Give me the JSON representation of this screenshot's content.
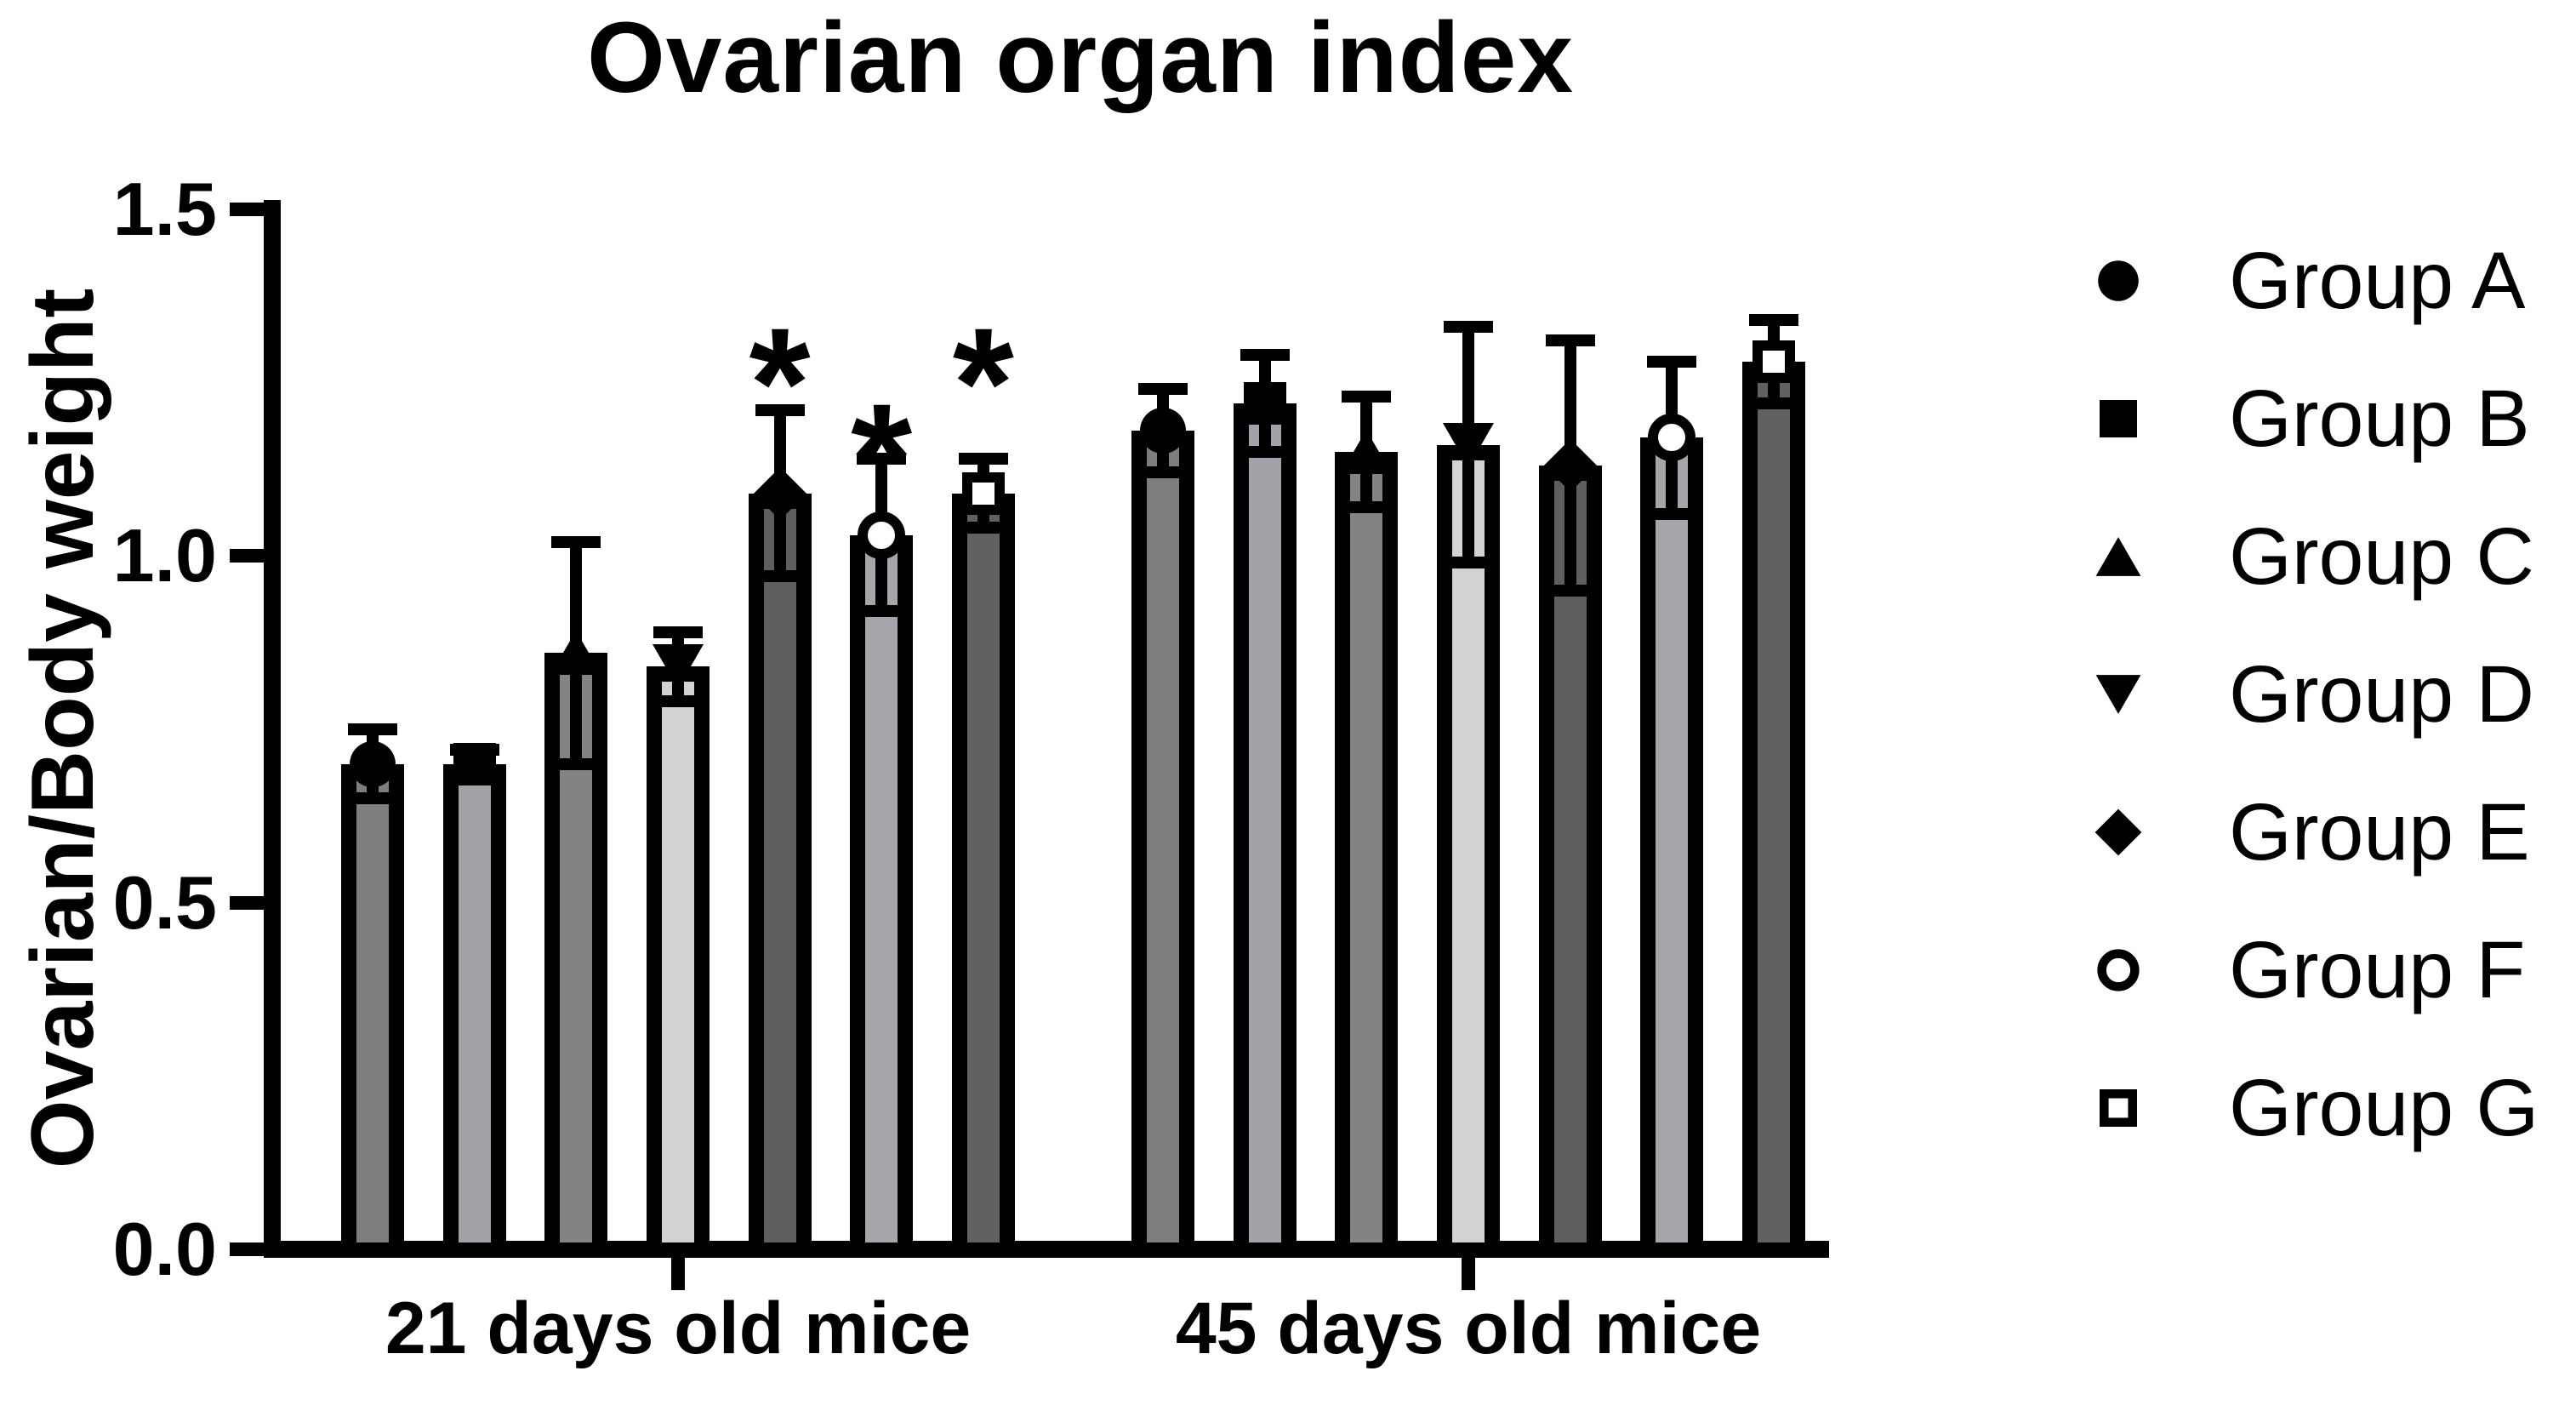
{
  "title": "Ovarian organ index",
  "y_axis": {
    "label": "Ovarian/Body weight",
    "tick_labels": [
      "0.0",
      "0.5",
      "1.0",
      "1.5"
    ]
  },
  "x_axis": {
    "categories": [
      "21 days old mice",
      "45 days old mice"
    ]
  },
  "chart_data": {
    "type": "bar",
    "title": "Ovarian organ index",
    "xlabel": "",
    "ylabel": "Ovarian/Body weight",
    "ylim": [
      0,
      1.5
    ],
    "yticks": [
      0,
      0.5,
      1,
      1.5
    ],
    "grid": false,
    "legend_position": "right",
    "categories": [
      "21 days old mice",
      "45 days old mice"
    ],
    "series": [
      {
        "name": "Group A",
        "marker": "circle-filled",
        "color": "#7e7e7e",
        "values": [
          0.7,
          1.18
        ],
        "errors": [
          0.05,
          0.06
        ]
      },
      {
        "name": "Group B",
        "marker": "square-filled",
        "color": "#a3a2a9",
        "values": [
          0.7,
          1.22
        ],
        "errors": [
          0.02,
          0.07
        ]
      },
      {
        "name": "Group C",
        "marker": "triangle-up-filled",
        "color": "#838383",
        "values": [
          0.86,
          1.15
        ],
        "errors": [
          0.16,
          0.08
        ]
      },
      {
        "name": "Group D",
        "marker": "triangle-down-filled",
        "color": "#d3d3d3",
        "values": [
          0.84,
          1.16
        ],
        "errors": [
          0.05,
          0.17
        ]
      },
      {
        "name": "Group E",
        "marker": "diamond-filled",
        "color": "#5e5e5e",
        "values": [
          1.09,
          1.13
        ],
        "errors": [
          0.12,
          0.18
        ]
      },
      {
        "name": "Group F",
        "marker": "circle-open",
        "color": "#a5a5ab",
        "values": [
          1.03,
          1.17
        ],
        "errors": [
          0.11,
          0.11
        ]
      },
      {
        "name": "Group G",
        "marker": "square-open",
        "color": "#616161",
        "values": [
          1.09,
          1.28
        ],
        "errors": [
          0.05,
          0.06
        ]
      }
    ],
    "annotations": [
      {
        "text": "*",
        "category_index": 0,
        "series_name": "Group E",
        "value": 1.29
      },
      {
        "text": "*",
        "category_index": 0,
        "series_name": "Group F",
        "value": 1.18
      },
      {
        "text": "*",
        "category_index": 0,
        "series_name": "Group G",
        "value": 1.29
      }
    ],
    "axis_color": "#000000",
    "background_color": "#ffffff"
  }
}
